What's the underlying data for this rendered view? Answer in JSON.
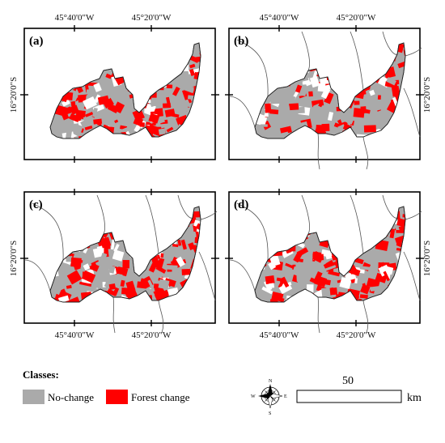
{
  "panels": [
    {
      "label": "(a)",
      "lon_top": [
        "45°40'0\"W",
        "45°20'0\"W"
      ],
      "lat_left": "16°20'0\"S",
      "lat_right": "",
      "lon_bottom": [
        "",
        ""
      ],
      "boundaries": false,
      "change_share": 0.45
    },
    {
      "label": "(b)",
      "lon_top": [
        "45°40'0\"W",
        "45°20'0\"W"
      ],
      "lat_left": "",
      "lat_right": "16°20'0\"S",
      "lon_bottom": [
        "",
        ""
      ],
      "boundaries": true,
      "change_share": 0.35
    },
    {
      "label": "(c)",
      "lon_top": [
        "",
        ""
      ],
      "lat_left": "16°20'0\"S",
      "lat_right": "",
      "lon_bottom": [
        "45°40'0\"W",
        "45°20'0\"W"
      ],
      "boundaries": true,
      "change_share": 0.55
    },
    {
      "label": "(d)",
      "lon_top": [
        "",
        ""
      ],
      "lat_left": "",
      "lat_right": "16°20'0\"S",
      "lon_bottom": [
        "45°40'0\"W",
        "45°20'0\"W"
      ],
      "boundaries": true,
      "change_share": 0.6
    }
  ],
  "legend": {
    "title": "Classes:",
    "items": [
      {
        "label": "No-change",
        "color": "#aaaaaa"
      },
      {
        "label": "Forest change",
        "color": "#ff0000"
      }
    ]
  },
  "compass": {
    "n": "N",
    "s": "S",
    "e": "E",
    "w": "W"
  },
  "scalebar": {
    "value": "50",
    "unit": "km"
  }
}
